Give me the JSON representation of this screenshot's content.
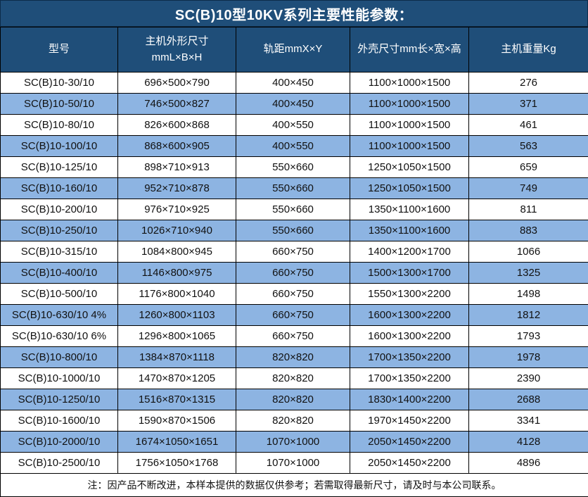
{
  "title": "SC(B)10型10KV系列主要性能参数：",
  "colors": {
    "header_bg": "#1F4E79",
    "row_alt_bg": "#8DB4E2",
    "border": "#000000",
    "header_text": "#FFFFFF"
  },
  "table": {
    "headers": [
      {
        "line1": "型号",
        "line2": ""
      },
      {
        "line1": "主机外形尺寸",
        "line2": "mmL×B×H"
      },
      {
        "line1": "轨距mmX×Y",
        "line2": ""
      },
      {
        "line1": "外壳尺寸mm长×宽×高",
        "line2": ""
      },
      {
        "line1": "主机重量Kg",
        "line2": ""
      }
    ],
    "rows": [
      [
        "SC(B)10-30/10",
        "696×500×790",
        "400×450",
        "1100×1000×1500",
        "276"
      ],
      [
        "SC(B)10-50/10",
        "746×500×827",
        "400×450",
        "1100×1000×1500",
        "371"
      ],
      [
        "SC(B)10-80/10",
        "826×600×868",
        "400×550",
        "1100×1000×1500",
        "461"
      ],
      [
        "SC(B)10-100/10",
        "868×600×905",
        "400×550",
        "1100×1000×1500",
        "563"
      ],
      [
        "SC(B)10-125/10",
        "898×710×913",
        "550×660",
        "1250×1050×1500",
        "659"
      ],
      [
        "SC(B)10-160/10",
        "952×710×878",
        "550×660",
        "1250×1050×1500",
        "749"
      ],
      [
        "SC(B)10-200/10",
        "976×710×925",
        "550×660",
        "1350×1100×1600",
        "811"
      ],
      [
        "SC(B)10-250/10",
        "1026×710×940",
        "550×660",
        "1350×1100×1600",
        "883"
      ],
      [
        "SC(B)10-315/10",
        "1084×800×945",
        "660×750",
        "1400×1200×1700",
        "1066"
      ],
      [
        "SC(B)10-400/10",
        "1146×800×975",
        "660×750",
        "1500×1300×1700",
        "1325"
      ],
      [
        "SC(B)10-500/10",
        "1176×800×1040",
        "660×750",
        "1550×1300×2200",
        "1498"
      ],
      [
        "SC(B)10-630/10 4%",
        "1260×800×1103",
        "660×750",
        "1600×1300×2200",
        "1812"
      ],
      [
        "SC(B)10-630/10 6%",
        "1296×800×1065",
        "660×750",
        "1600×1300×2200",
        "1793"
      ],
      [
        "SC(B)10-800/10",
        "1384×870×1118",
        "820×820",
        "1700×1350×2200",
        "1978"
      ],
      [
        "SC(B)10-1000/10",
        "1470×870×1205",
        "820×820",
        "1700×1350×2200",
        "2390"
      ],
      [
        "SC(B)10-1250/10",
        "1516×870×1315",
        "820×820",
        "1830×1400×2200",
        "2688"
      ],
      [
        "SC(B)10-1600/10",
        "1590×870×1506",
        "820×820",
        "1970×1450×2200",
        "3341"
      ],
      [
        "SC(B)10-2000/10",
        "1674×1050×1651",
        "1070×1000",
        "2050×1450×2200",
        "4128"
      ],
      [
        "SC(B)10-2500/10",
        "1756×1050×1768",
        "1070×1000",
        "2050×1450×2200",
        "4896"
      ]
    ]
  },
  "note": "注：因产品不断改进，本样本提供的数据仅供参考；若需取得最新尺寸，请及时与本公司联系。"
}
